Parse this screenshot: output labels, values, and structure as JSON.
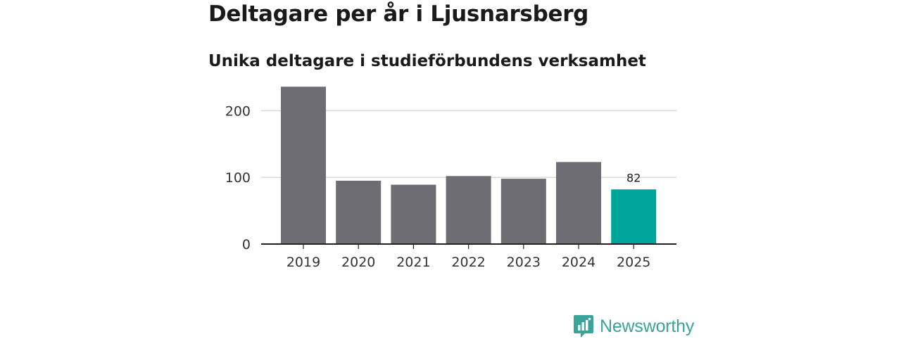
{
  "title": "Deltagare per år i Ljusnarsberg",
  "subtitle": "Unika deltagare i studieförbundens verksamhet",
  "brand": {
    "name": "Newsworthy",
    "icon": "newsworthy-logo-icon",
    "color": "#3aa39a"
  },
  "colors": {
    "bar": "#6e6d73",
    "highlight": "#00a59a",
    "grid": "#d9d9d9",
    "axis": "#222222"
  },
  "chart_data": {
    "type": "bar",
    "title": "Deltagare per år i Ljusnarsberg",
    "subtitle": "Unika deltagare i studieförbundens verksamhet",
    "xlabel": "",
    "ylabel": "",
    "categories": [
      "2019",
      "2020",
      "2021",
      "2022",
      "2023",
      "2024",
      "2025"
    ],
    "values": [
      236,
      95,
      89,
      102,
      98,
      123,
      82
    ],
    "highlight_index": 6,
    "data_labels": [
      {
        "index": 6,
        "text": "82"
      }
    ],
    "ylim": [
      0,
      250
    ],
    "yticks": [
      0,
      100,
      200
    ],
    "ytick_labels": [
      "0",
      "100",
      "200"
    ],
    "grid": true,
    "legend": "none"
  }
}
